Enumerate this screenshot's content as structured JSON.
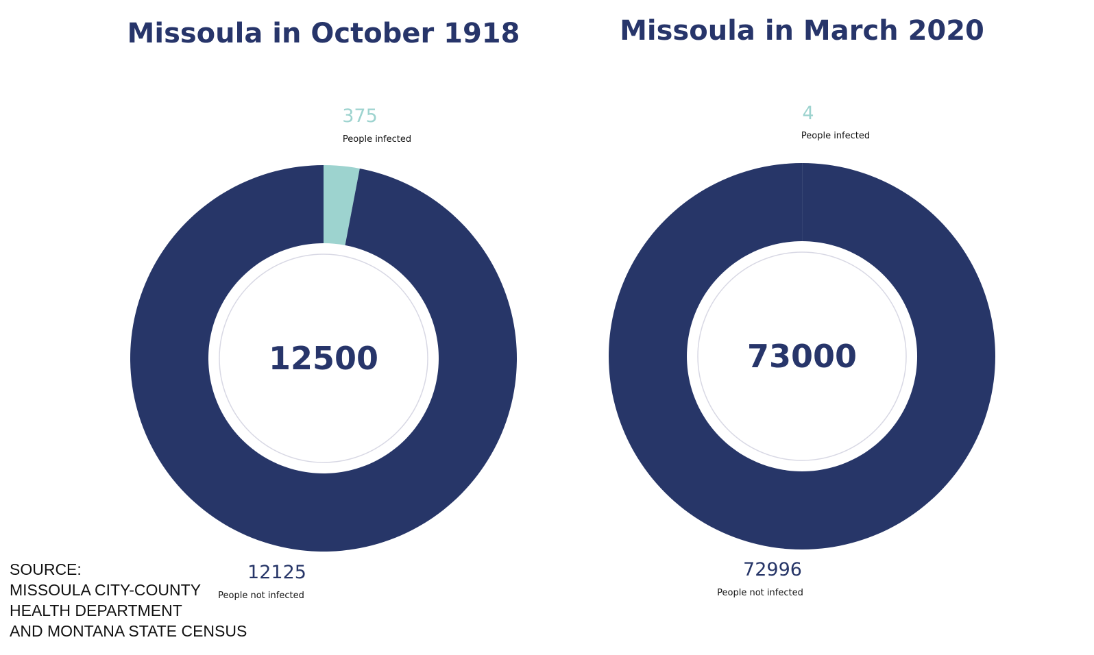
{
  "chart_data": [
    {
      "type": "pie",
      "donut": true,
      "title": "Missoula in October 1918",
      "total": 12500,
      "categories": [
        "People infected",
        "People not infected"
      ],
      "values": [
        375,
        12125
      ],
      "colors": [
        "#9dd3cf",
        "#273668"
      ]
    },
    {
      "type": "pie",
      "donut": true,
      "title": "Missoula in March 2020",
      "total": 73000,
      "categories": [
        "People infected",
        "People not infected"
      ],
      "values": [
        4,
        72996
      ],
      "colors": [
        "#9dd3cf",
        "#273668"
      ]
    }
  ],
  "source": [
    "SOURCE:",
    "MISSOULA CITY-COUNTY",
    "HEALTH DEPARTMENT",
    "AND MONTANA STATE CENSUS"
  ]
}
